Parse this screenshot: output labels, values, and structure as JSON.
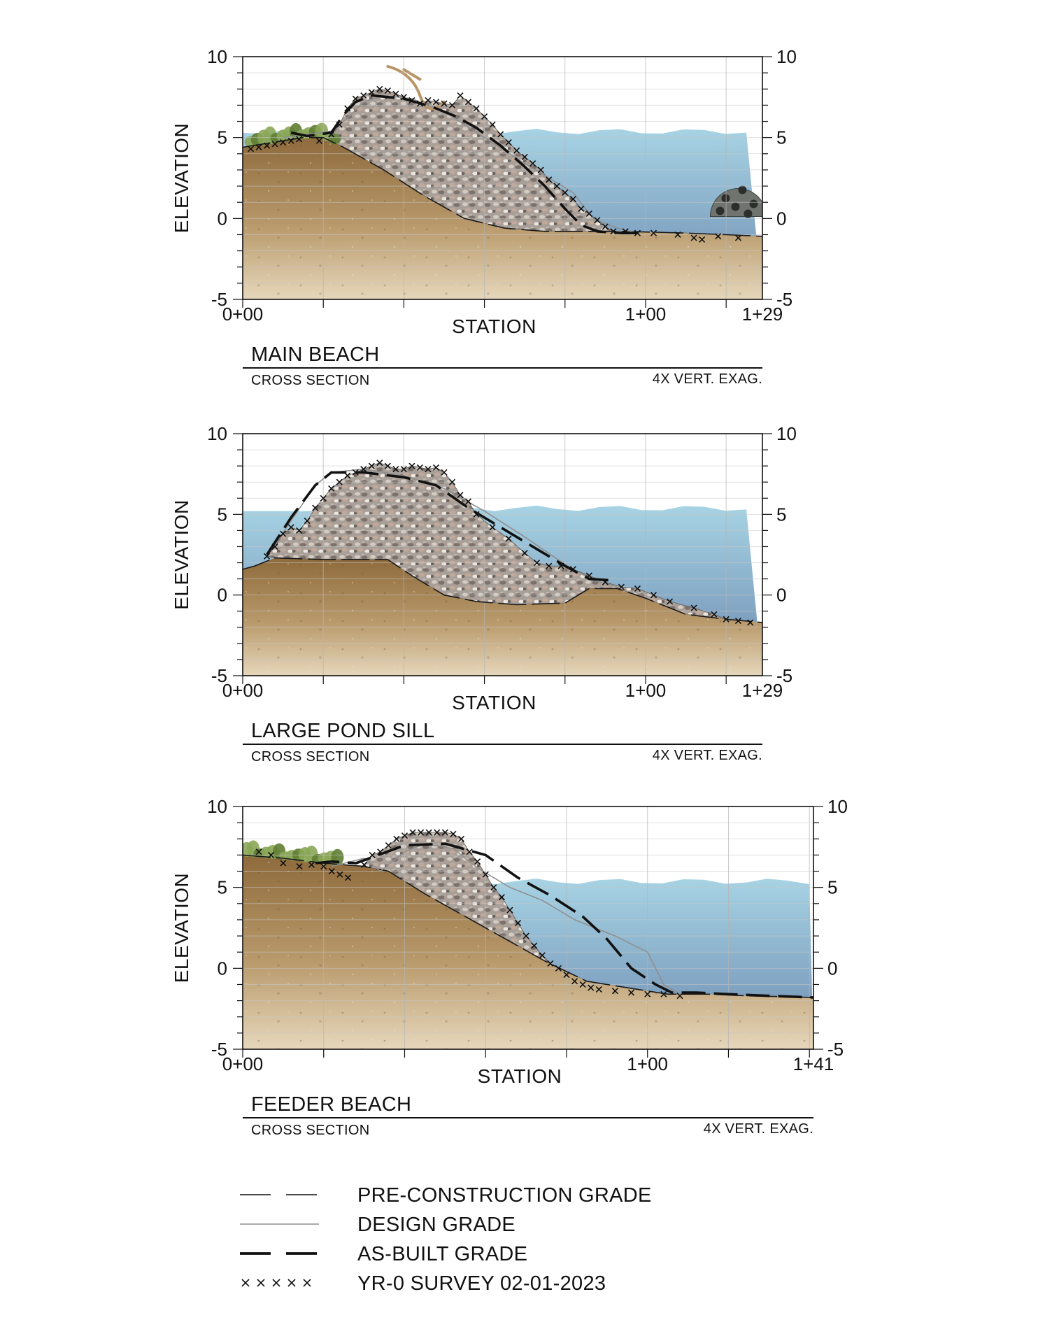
{
  "colors": {
    "soil_top": "#8e6a3c",
    "soil_bottom": "#e3d3b5",
    "rock": "#a39a94",
    "water_top": "#9ccde0",
    "water_bottom": "#6e8eb2",
    "vegetation": "#7c9a48",
    "grid": "#b9b9b9",
    "design_line": "#8f8f8f",
    "reef_ball": "#6f746f"
  },
  "icons": {
    "vegetation": "shrub-icon",
    "driftwood": "driftwood-icon",
    "reef_ball": "reef-ball-icon",
    "survey_mark": "x-mark-icon"
  },
  "panels": [
    {
      "title": "MAIN BEACH",
      "subtitle": "CROSS SECTION",
      "exaggeration": "4X VERT. EXAG.",
      "ylabel": "ELEVATION",
      "xlabel": "STATION",
      "y_ticks": [
        "10",
        "5",
        "0",
        "-5"
      ],
      "x_ticks": [
        "0+00",
        "1+00",
        "1+29"
      ],
      "station_range": [
        0,
        129
      ],
      "elevation_range": [
        -5,
        10
      ],
      "water_level": 5.2,
      "features": [
        "vegetation",
        "driftwood",
        "reef_ball"
      ],
      "pre_construction": [
        [
          0,
          4.4
        ],
        [
          5,
          4.6
        ],
        [
          10,
          4.8
        ],
        [
          15,
          5.0
        ],
        [
          20,
          5.0
        ],
        [
          25,
          4.4
        ],
        [
          35,
          3.0
        ],
        [
          45,
          1.4
        ],
        [
          55,
          0
        ],
        [
          65,
          -0.6
        ],
        [
          75,
          -0.8
        ],
        [
          85,
          -0.8
        ],
        [
          95,
          -0.8
        ],
        [
          110,
          -0.9
        ],
        [
          120,
          -1.0
        ],
        [
          129,
          -1.1
        ]
      ],
      "design": [
        [
          10,
          5.0
        ],
        [
          22,
          5.4
        ],
        [
          26,
          6.2
        ],
        [
          30,
          7.2
        ],
        [
          35,
          7.6
        ],
        [
          42,
          7.4
        ],
        [
          50,
          6.6
        ],
        [
          60,
          5.0
        ],
        [
          70,
          3.4
        ],
        [
          78,
          2.2
        ],
        [
          82,
          1.6
        ],
        [
          87,
          0
        ],
        [
          93,
          -0.6
        ],
        [
          98,
          -0.9
        ]
      ],
      "as_built": [
        [
          12,
          5.3
        ],
        [
          16,
          5.1
        ],
        [
          22,
          5.3
        ],
        [
          25,
          6.4
        ],
        [
          28,
          7.2
        ],
        [
          32,
          7.6
        ],
        [
          40,
          7.4
        ],
        [
          47,
          6.9
        ],
        [
          53,
          6.3
        ],
        [
          58,
          5.6
        ],
        [
          64,
          4.5
        ],
        [
          70,
          3.2
        ],
        [
          75,
          2.0
        ],
        [
          80,
          0.6
        ],
        [
          84,
          -0.4
        ],
        [
          88,
          -0.8
        ],
        [
          94,
          -0.9
        ],
        [
          100,
          -0.9
        ]
      ],
      "survey": [
        [
          2,
          4.3
        ],
        [
          4,
          4.4
        ],
        [
          6,
          4.5
        ],
        [
          8,
          4.6
        ],
        [
          10,
          4.7
        ],
        [
          12,
          4.8
        ],
        [
          14,
          4.9
        ],
        [
          19,
          4.8
        ],
        [
          22,
          5.2
        ],
        [
          24,
          5.8
        ],
        [
          26,
          6.8
        ],
        [
          28,
          7.4
        ],
        [
          30,
          7.6
        ],
        [
          32,
          7.8
        ],
        [
          34,
          8.0
        ],
        [
          36,
          7.9
        ],
        [
          38,
          7.7
        ],
        [
          40,
          7.5
        ],
        [
          42,
          7.3
        ],
        [
          44,
          7.1
        ],
        [
          46,
          7.3
        ],
        [
          48,
          7.2
        ],
        [
          50,
          7.1
        ],
        [
          52,
          7.0
        ],
        [
          54,
          7.6
        ],
        [
          56,
          7.2
        ],
        [
          58,
          6.8
        ],
        [
          60,
          6.3
        ],
        [
          62,
          5.8
        ],
        [
          64,
          5.2
        ],
        [
          66,
          4.7
        ],
        [
          68,
          4.2
        ],
        [
          70,
          3.8
        ],
        [
          72,
          3.4
        ],
        [
          74,
          3.0
        ],
        [
          76,
          2.4
        ],
        [
          78,
          2.0
        ],
        [
          80,
          1.6
        ],
        [
          82,
          1.2
        ],
        [
          84,
          0.6
        ],
        [
          86,
          0.3
        ],
        [
          88,
          -0.1
        ],
        [
          90,
          -0.5
        ],
        [
          92,
          -0.8
        ],
        [
          95,
          -0.8
        ],
        [
          98,
          -0.9
        ],
        [
          102,
          -0.9
        ],
        [
          108,
          -1.0
        ],
        [
          112,
          -1.2
        ],
        [
          114,
          -1.3
        ],
        [
          118,
          -1.1
        ],
        [
          123,
          -1.2
        ]
      ]
    },
    {
      "title": "LARGE POND SILL",
      "subtitle": "CROSS SECTION",
      "exaggeration": "4X VERT. EXAG.",
      "ylabel": "ELEVATION",
      "xlabel": "STATION",
      "y_ticks": [
        "10",
        "5",
        "0",
        "-5"
      ],
      "x_ticks": [
        "0+00",
        "1+00",
        "1+29"
      ],
      "station_range": [
        0,
        129
      ],
      "elevation_range": [
        -5,
        10
      ],
      "water_level": 5.2,
      "features": [],
      "pre_construction": [
        [
          0,
          1.6
        ],
        [
          3,
          1.8
        ],
        [
          8,
          2.3
        ],
        [
          20,
          2.2
        ],
        [
          36,
          2.2
        ],
        [
          42,
          1.2
        ],
        [
          50,
          0
        ],
        [
          58,
          -0.4
        ],
        [
          68,
          -0.6
        ],
        [
          80,
          -0.5
        ],
        [
          86,
          0.4
        ],
        [
          93,
          0.4
        ],
        [
          100,
          -0.2
        ],
        [
          110,
          -1.2
        ],
        [
          120,
          -1.5
        ],
        [
          129,
          -1.7
        ]
      ],
      "design": [
        [
          6,
          2.4
        ],
        [
          12,
          4.6
        ],
        [
          18,
          6.8
        ],
        [
          22,
          7.6
        ],
        [
          30,
          7.8
        ],
        [
          40,
          7.4
        ],
        [
          50,
          6.6
        ],
        [
          60,
          5.2
        ],
        [
          70,
          3.6
        ],
        [
          80,
          1.9
        ],
        [
          87,
          0.9
        ],
        [
          92,
          0.6
        ]
      ],
      "as_built": [
        [
          6,
          2.5
        ],
        [
          12,
          4.8
        ],
        [
          18,
          6.8
        ],
        [
          22,
          7.6
        ],
        [
          30,
          7.6
        ],
        [
          40,
          7.3
        ],
        [
          48,
          6.8
        ],
        [
          56,
          5.4
        ],
        [
          64,
          4.2
        ],
        [
          72,
          3.0
        ],
        [
          80,
          1.8
        ],
        [
          86,
          1.0
        ],
        [
          92,
          0.9
        ]
      ],
      "survey": [
        [
          6,
          2.4
        ],
        [
          8,
          3.0
        ],
        [
          10,
          3.8
        ],
        [
          12,
          4.2
        ],
        [
          14,
          4.0
        ],
        [
          16,
          4.6
        ],
        [
          18,
          5.4
        ],
        [
          20,
          6.0
        ],
        [
          22,
          6.6
        ],
        [
          24,
          7.0
        ],
        [
          26,
          7.4
        ],
        [
          28,
          7.6
        ],
        [
          30,
          7.8
        ],
        [
          32,
          8.0
        ],
        [
          34,
          8.2
        ],
        [
          36,
          8.0
        ],
        [
          38,
          7.8
        ],
        [
          40,
          7.8
        ],
        [
          42,
          8.0
        ],
        [
          44,
          7.9
        ],
        [
          46,
          7.8
        ],
        [
          48,
          7.9
        ],
        [
          50,
          7.6
        ],
        [
          52,
          7.0
        ],
        [
          54,
          6.2
        ],
        [
          56,
          5.8
        ],
        [
          58,
          5.0
        ],
        [
          62,
          4.2
        ],
        [
          66,
          3.5
        ],
        [
          70,
          2.6
        ],
        [
          73,
          2.0
        ],
        [
          76,
          1.8
        ],
        [
          79,
          1.8
        ],
        [
          82,
          1.6
        ],
        [
          86,
          1.2
        ],
        [
          90,
          0.8
        ],
        [
          94,
          0.5
        ],
        [
          98,
          0.4
        ],
        [
          102,
          0
        ],
        [
          106,
          -0.4
        ],
        [
          112,
          -0.8
        ],
        [
          117,
          -1.2
        ],
        [
          120,
          -1.5
        ],
        [
          123,
          -1.6
        ],
        [
          126,
          -1.7
        ]
      ]
    },
    {
      "title": "FEEDER BEACH",
      "subtitle": "CROSS SECTION",
      "exaggeration": "4X VERT. EXAG.",
      "ylabel": "ELEVATION",
      "xlabel": "STATION",
      "y_ticks": [
        "10",
        "5",
        "0",
        "-5"
      ],
      "x_ticks": [
        "0+00",
        "1+00",
        "1+41"
      ],
      "station_range": [
        0,
        141
      ],
      "elevation_range": [
        -5,
        10
      ],
      "water_level": 5.2,
      "features": [
        "vegetation"
      ],
      "pre_construction": [
        [
          0,
          7.0
        ],
        [
          10,
          6.8
        ],
        [
          20,
          6.5
        ],
        [
          30,
          6.3
        ],
        [
          36,
          6.0
        ],
        [
          45,
          4.6
        ],
        [
          55,
          3.2
        ],
        [
          65,
          1.8
        ],
        [
          75,
          0.4
        ],
        [
          85,
          -0.8
        ],
        [
          95,
          -1.2
        ],
        [
          105,
          -1.6
        ],
        [
          115,
          -1.6
        ],
        [
          125,
          -1.7
        ],
        [
          141,
          -1.8
        ]
      ],
      "design": [
        [
          22,
          6.3
        ],
        [
          30,
          6.8
        ],
        [
          34,
          6.0
        ],
        [
          40,
          7.2
        ],
        [
          45,
          7.7
        ],
        [
          52,
          7.4
        ],
        [
          58,
          6.2
        ],
        [
          66,
          5.0
        ],
        [
          74,
          4.2
        ],
        [
          82,
          3.0
        ],
        [
          92,
          2.0
        ],
        [
          100,
          1.0
        ],
        [
          104,
          -1.0
        ],
        [
          108,
          -1.6
        ]
      ],
      "as_built": [
        [
          18,
          6.5
        ],
        [
          22,
          6.6
        ],
        [
          28,
          6.5
        ],
        [
          40,
          7.6
        ],
        [
          50,
          7.7
        ],
        [
          60,
          7.0
        ],
        [
          68,
          5.6
        ],
        [
          76,
          4.5
        ],
        [
          84,
          3.2
        ],
        [
          90,
          1.8
        ],
        [
          96,
          0
        ],
        [
          102,
          -1.0
        ],
        [
          106,
          -1.5
        ],
        [
          112,
          -1.5
        ],
        [
          120,
          -1.6
        ],
        [
          130,
          -1.7
        ],
        [
          141,
          -1.8
        ]
      ],
      "survey": [
        [
          4,
          7.2
        ],
        [
          7,
          7.0
        ],
        [
          10,
          6.5
        ],
        [
          14,
          6.3
        ],
        [
          17,
          6.4
        ],
        [
          20,
          6.3
        ],
        [
          22,
          6.0
        ],
        [
          24,
          5.8
        ],
        [
          26,
          5.6
        ],
        [
          30,
          6.4
        ],
        [
          32,
          7.0
        ],
        [
          34,
          7.2
        ],
        [
          36,
          7.6
        ],
        [
          38,
          8.0
        ],
        [
          40,
          8.2
        ],
        [
          42,
          8.4
        ],
        [
          44,
          8.4
        ],
        [
          46,
          8.4
        ],
        [
          48,
          8.4
        ],
        [
          50,
          8.4
        ],
        [
          52,
          8.3
        ],
        [
          54,
          8.0
        ],
        [
          56,
          7.2
        ],
        [
          58,
          6.6
        ],
        [
          60,
          5.8
        ],
        [
          62,
          5.0
        ],
        [
          64,
          4.4
        ],
        [
          66,
          3.6
        ],
        [
          68,
          2.8
        ],
        [
          70,
          2.0
        ],
        [
          72,
          1.4
        ],
        [
          74,
          0.8
        ],
        [
          76,
          0.3
        ],
        [
          78,
          0
        ],
        [
          80,
          -0.4
        ],
        [
          82,
          -0.8
        ],
        [
          84,
          -1.0
        ],
        [
          86,
          -1.2
        ],
        [
          88,
          -1.3
        ],
        [
          92,
          -1.4
        ],
        [
          96,
          -1.5
        ],
        [
          100,
          -1.6
        ],
        [
          104,
          -1.6
        ],
        [
          108,
          -1.7
        ]
      ]
    }
  ],
  "legend": [
    {
      "style": "pre",
      "label": "PRE-CONSTRUCTION GRADE"
    },
    {
      "style": "design",
      "label": "DESIGN GRADE"
    },
    {
      "style": "asbuilt",
      "label": "AS-BUILT GRADE"
    },
    {
      "style": "survey",
      "label": "YR-0 SURVEY 02-01-2023"
    }
  ]
}
